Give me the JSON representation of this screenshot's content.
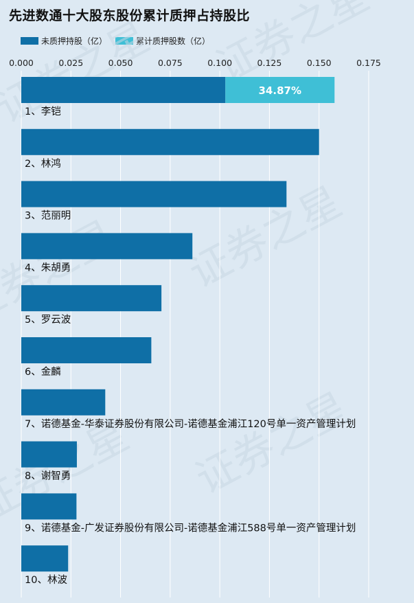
{
  "chart_data": {
    "type": "bar",
    "orientation": "horizontal",
    "stacked": true,
    "title": "先进数通十大股东股份累计质押占持股比",
    "xlim": [
      0,
      0.175
    ],
    "x_ticks": [
      "0.000",
      "0.025",
      "0.050",
      "0.075",
      "0.100",
      "0.125",
      "0.150",
      "0.175"
    ],
    "x_tick_values": [
      0,
      0.025,
      0.05,
      0.075,
      0.1,
      0.125,
      0.15,
      0.175
    ],
    "grid": true,
    "legend_position": "top-left",
    "categories": [
      "1、李铠",
      "2、林鸿",
      "3、范丽明",
      "4、朱胡勇",
      "5、罗云波",
      "6、金麟",
      "7、诺德基金-华泰证券股份有限公司-诺德基金浦江120号单一资产管理计划",
      "8、谢智勇",
      "9、诺德基金-广发证券股份有限公司-诺德基金浦江588号单一资产管理计划",
      "10、林波"
    ],
    "series": [
      {
        "name": "未质押持股（亿）",
        "color": "#0f6fa6",
        "values": [
          0.1028,
          0.15,
          0.1336,
          0.0862,
          0.0706,
          0.0655,
          0.0423,
          0.028,
          0.0278,
          0.0236
        ]
      },
      {
        "name": "累计质押股数（亿）",
        "color": "#3fbfd6",
        "values": [
          0.055,
          0,
          0,
          0,
          0,
          0,
          0,
          0,
          0,
          0
        ]
      }
    ],
    "data_labels": [
      {
        "category_index": 0,
        "text": "34.87%"
      }
    ]
  },
  "watermark": "证券之星"
}
